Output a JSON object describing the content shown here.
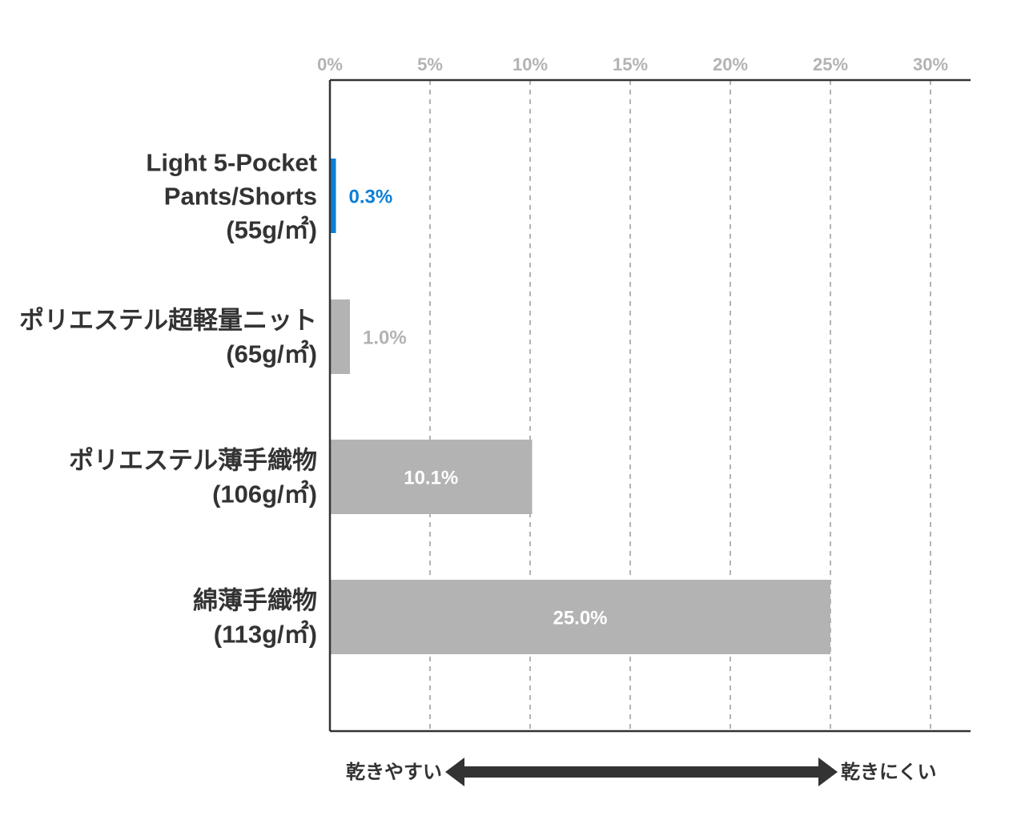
{
  "colors": {
    "accent": "#0a7fd6",
    "bar": "#b3b3b3",
    "axis": "#333333",
    "grid": "#b3b3b3",
    "tick_text": "#b3b3b3",
    "label_text": "#333333",
    "inside_label": "#ffffff"
  },
  "chart_data": {
    "type": "bar",
    "orientation": "horizontal",
    "title": "",
    "xlabel": "",
    "ylabel": "",
    "xlim": [
      0,
      30
    ],
    "x_ticks": [
      0,
      5,
      10,
      15,
      20,
      25,
      30
    ],
    "x_tick_labels": [
      "0%",
      "5%",
      "10%",
      "15%",
      "20%",
      "25%",
      "30%"
    ],
    "grid": "vertical dashed",
    "legend": "none",
    "categories": [
      [
        "Light 5-Pocket",
        "Pants/Shorts",
        "(55g/㎡)"
      ],
      [
        "ポリエステル超軽量ニット",
        "(65g/㎡)"
      ],
      [
        "ポリエステル薄手織物",
        "(106g/㎡)"
      ],
      [
        "綿薄手織物",
        "(113g/㎡)"
      ]
    ],
    "values": [
      0.3,
      1.0,
      10.1,
      25.0
    ],
    "value_labels": [
      "0.3%",
      "1.0%",
      "10.1%",
      "25.0%"
    ],
    "bar_colors": [
      "#0a7fd6",
      "#b3b3b3",
      "#b3b3b3",
      "#b3b3b3"
    ],
    "highlight_index": 0,
    "direction_arrow": {
      "left_label": "乾きやすい",
      "right_label": "乾きにくい"
    }
  }
}
